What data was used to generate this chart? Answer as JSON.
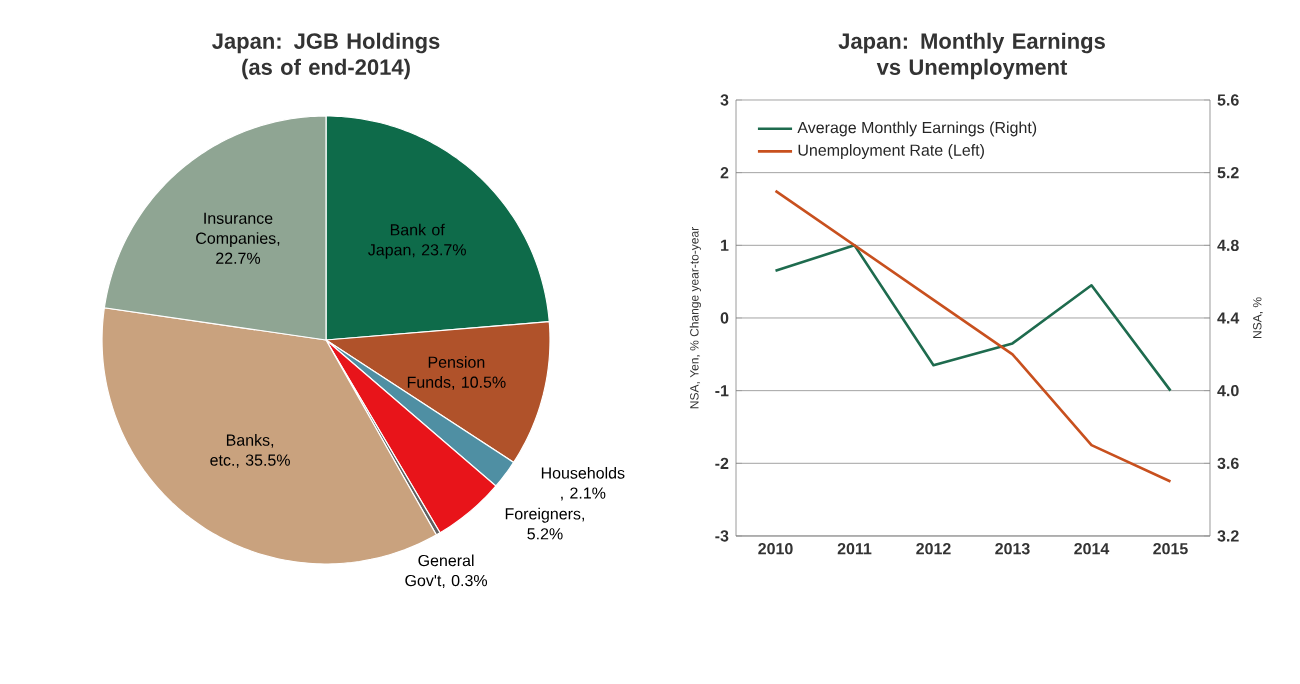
{
  "chart_data": [
    {
      "type": "pie",
      "title": "Japan: JGB Holdings (as of end-2014)",
      "categories": [
        "Bank of Japan, 23.7%",
        "Pension Funds, 10.5%",
        "Households , 2.1%",
        "Foreigners, 5.2%",
        "General Gov't, 0.3%",
        "Banks, etc., 35.5%",
        "Insurance Companies, 22.7%"
      ],
      "values": [
        23.7,
        10.5,
        2.1,
        5.2,
        0.3,
        35.5,
        22.7
      ],
      "colors": [
        "#0e6b4a",
        "#b0522a",
        "#4f8fa3",
        "#e8141a",
        "#606060",
        "#c9a27e",
        "#8fa593"
      ]
    },
    {
      "type": "line",
      "title": "Japan: Monthly Earnings vs Unemployment",
      "categories": [
        "2010",
        "2011",
        "2012",
        "2013",
        "2014",
        "2015"
      ],
      "ylabel": "NSA, Yen, % Change year-to-year",
      "y2label": "NSA, %",
      "ylim": [
        -3,
        3
      ],
      "yticks": [
        -3,
        -2,
        -1,
        0,
        1,
        2,
        3
      ],
      "y2lim": [
        3.2,
        5.6
      ],
      "y2ticks": [
        3.2,
        3.6,
        {
          "value": 4.0,
          "label": "4.0"
        },
        4.4,
        4.8,
        5.2,
        5.6
      ],
      "grid": "y",
      "legend": "top left",
      "series": [
        {
          "name": "Average Monthly Earnings (Right)",
          "color": "#1e6b4e",
          "values": [
            0.65,
            1.0,
            -0.65,
            -0.35,
            0.45,
            -1.0
          ]
        },
        {
          "name": "Unemployment Rate (Left)",
          "color": "#c8501e",
          "axis": "y2",
          "values": [
            5.1,
            4.8,
            4.5,
            4.2,
            3.7,
            3.5
          ]
        }
      ]
    }
  ]
}
